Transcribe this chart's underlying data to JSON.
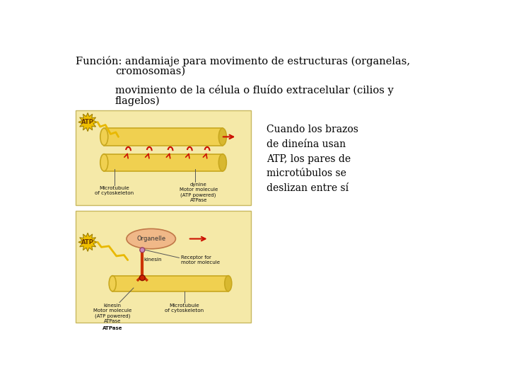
{
  "bg_color": "#ffffff",
  "title_line1": "Función: andamiaje para movimento de estructuras (organelas,",
  "title_line2": "cromosomas)",
  "title_line3": "movimiento de la célula o fluído extracelular (cilios y",
  "title_line4": "flagelos)",
  "annotation_text": "Cuando los brazos\nde dineína usan\nATP, los pares de\nmicrotúbulos se\ndeslizan entre sí",
  "text_font_size": 10.5,
  "annotation_font_size": 10,
  "img1_bg": "#f5e9a8",
  "img2_bg": "#f5e9a8",
  "img_edge": "#c8b860"
}
